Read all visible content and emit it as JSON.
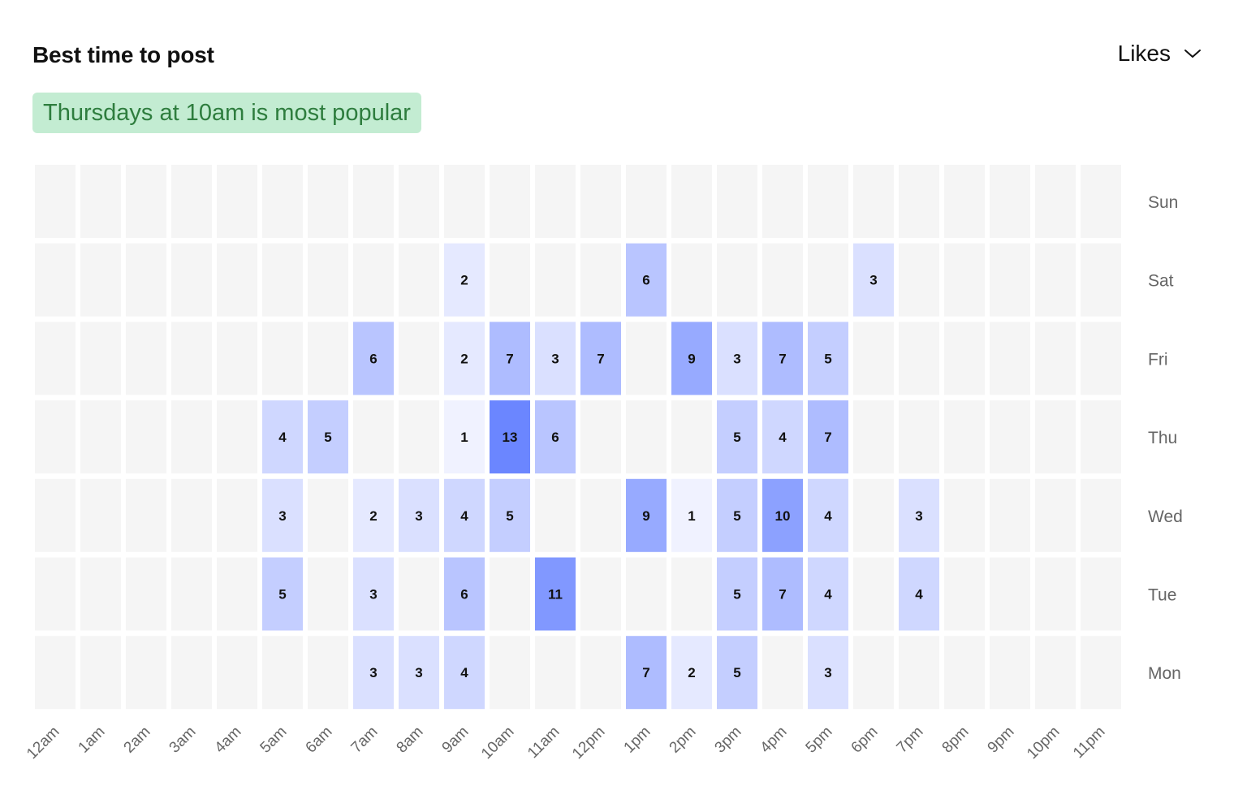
{
  "header": {
    "title": "Best time to post",
    "metric_select": "Likes",
    "highlight": "Thursdays at 10am is most popular"
  },
  "chart_data": {
    "type": "heatmap",
    "title": "Best time to post",
    "metric": "Likes",
    "x_labels": [
      "12am",
      "1am",
      "2am",
      "3am",
      "4am",
      "5am",
      "6am",
      "7am",
      "8am",
      "9am",
      "10am",
      "11am",
      "12pm",
      "1pm",
      "2pm",
      "3pm",
      "4pm",
      "5pm",
      "6pm",
      "7pm",
      "8pm",
      "9pm",
      "10pm",
      "11pm"
    ],
    "y_labels": [
      "Sun",
      "Sat",
      "Fri",
      "Thu",
      "Wed",
      "Tue",
      "Mon"
    ],
    "values": [
      [
        0,
        0,
        0,
        0,
        0,
        0,
        0,
        0,
        0,
        0,
        0,
        0,
        0,
        0,
        0,
        0,
        0,
        0,
        0,
        0,
        0,
        0,
        0,
        0
      ],
      [
        0,
        0,
        0,
        0,
        0,
        0,
        0,
        0,
        0,
        2,
        0,
        0,
        0,
        6,
        0,
        0,
        0,
        0,
        3,
        0,
        0,
        0,
        0,
        0
      ],
      [
        0,
        0,
        0,
        0,
        0,
        0,
        0,
        6,
        0,
        2,
        7,
        3,
        7,
        0,
        9,
        3,
        7,
        5,
        0,
        0,
        0,
        0,
        0,
        0
      ],
      [
        0,
        0,
        0,
        0,
        0,
        4,
        5,
        0,
        0,
        1,
        13,
        6,
        0,
        0,
        0,
        5,
        4,
        7,
        0,
        0,
        0,
        0,
        0,
        0
      ],
      [
        0,
        0,
        0,
        0,
        0,
        3,
        0,
        2,
        3,
        4,
        5,
        0,
        0,
        9,
        1,
        5,
        10,
        4,
        0,
        3,
        0,
        0,
        0,
        0
      ],
      [
        0,
        0,
        0,
        0,
        0,
        5,
        0,
        3,
        0,
        6,
        0,
        11,
        0,
        0,
        0,
        5,
        7,
        4,
        0,
        4,
        0,
        0,
        0,
        0
      ],
      [
        0,
        0,
        0,
        0,
        0,
        0,
        0,
        3,
        3,
        4,
        0,
        0,
        0,
        7,
        2,
        5,
        0,
        3,
        0,
        0,
        0,
        0,
        0,
        0
      ]
    ],
    "max_value": 13,
    "colors": {
      "empty": "#f5f5f5",
      "low": "#f0f2ff",
      "high": "#6b86ff"
    }
  }
}
